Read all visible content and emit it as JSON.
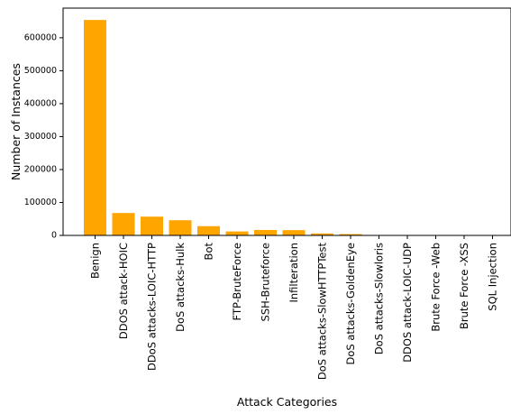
{
  "chart_data": {
    "type": "bar",
    "title": "",
    "xlabel": "Attack Categories",
    "ylabel": "Number of Instances",
    "ylim": [
      0,
      690000
    ],
    "yticks": [
      0,
      100000,
      200000,
      300000,
      400000,
      500000,
      600000
    ],
    "grid": false,
    "bar_color": "#FFA500",
    "categories": [
      "Benign",
      "DDOS attack-HOIC",
      "DDoS attacks-LOIC-HTTP",
      "DoS attacks-Hulk",
      "Bot",
      "FTP-BruteForce",
      "SSH-Bruteforce",
      "Infilteration",
      "DoS attacks-SlowHTTPTest",
      "DoS attacks-GoldenEye",
      "DoS attacks-Slowloris",
      "DDOS attack-LOIC-UDP",
      "Brute Force -Web",
      "Brute Force -XSS",
      "SQL Injection"
    ],
    "values": [
      654000,
      68000,
      57000,
      46000,
      28000,
      12000,
      16500,
      16000,
      6000,
      4000,
      1000,
      500,
      200,
      100,
      50
    ]
  }
}
